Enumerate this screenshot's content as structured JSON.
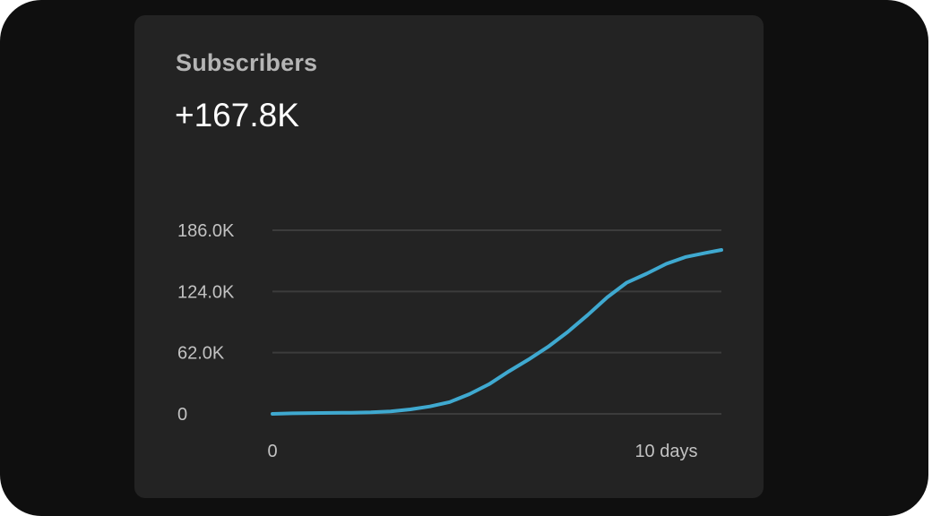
{
  "card": {
    "title": "Subscribers",
    "value": "+167.8K"
  },
  "chart_data": {
    "type": "line",
    "x_axis": {
      "min": 0,
      "max": 11.4,
      "tick_labels": [
        "0",
        "10 days"
      ],
      "tick_values": [
        0,
        10
      ]
    },
    "y_axis": {
      "min": 0,
      "max": 186000,
      "tick_labels": [
        "0",
        "62.0K",
        "124.0K",
        "186.0K"
      ],
      "tick_values": [
        0,
        62000,
        124000,
        186000
      ]
    },
    "grid": true,
    "colors": {
      "line": "#3fa9d0",
      "grid": "#3c3c3c"
    },
    "series": [
      {
        "x": [
          0,
          0.5,
          1,
          1.5,
          2,
          2.5,
          3,
          3.5,
          4,
          4.5,
          5,
          5.5,
          6,
          6.5,
          7,
          7.5,
          8,
          8.5,
          9,
          9.5,
          10,
          10.5,
          11,
          11.4
        ],
        "values": [
          0,
          500,
          800,
          1000,
          1200,
          1500,
          2500,
          4500,
          7500,
          12000,
          20000,
          30000,
          43000,
          55000,
          68000,
          83000,
          100000,
          118000,
          133000,
          142000,
          152000,
          159000,
          163000,
          166000
        ]
      }
    ]
  }
}
